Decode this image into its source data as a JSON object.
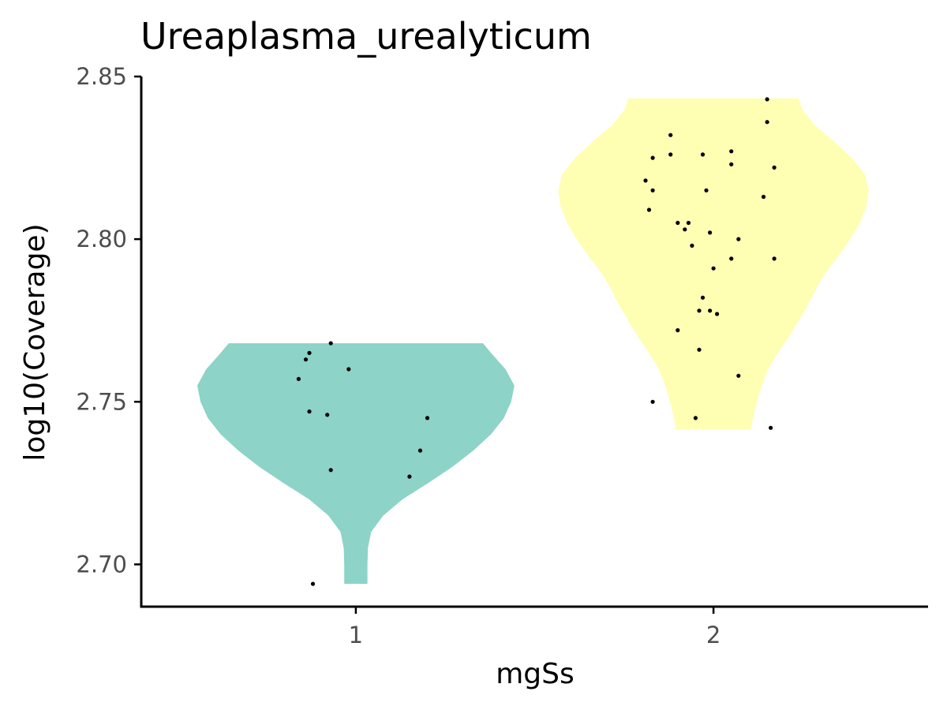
{
  "chart_data": {
    "type": "violin",
    "title": "Ureaplasma_urealyticum",
    "xlabel": "mgSs",
    "ylabel": "log10(Coverage)",
    "categories": [
      "1",
      "2"
    ],
    "y_ticks": [
      "2.70",
      "2.75",
      "2.80",
      "2.85"
    ],
    "y_tick_values": [
      2.7,
      2.75,
      2.8,
      2.85
    ],
    "ylim": [
      2.687,
      2.85
    ],
    "xlim": [
      0.4,
      2.6
    ],
    "grid": false,
    "legend": "none",
    "groups": [
      {
        "category": "1",
        "color": "#8dd3c7",
        "density_profile": [
          [
            2.694,
            0.072
          ],
          [
            2.7,
            0.072
          ],
          [
            2.705,
            0.075
          ],
          [
            2.71,
            0.095
          ],
          [
            2.715,
            0.17
          ],
          [
            2.72,
            0.29
          ],
          [
            2.725,
            0.45
          ],
          [
            2.73,
            0.6
          ],
          [
            2.735,
            0.73
          ],
          [
            2.74,
            0.84
          ],
          [
            2.745,
            0.92
          ],
          [
            2.75,
            0.965
          ],
          [
            2.755,
            0.985
          ],
          [
            2.76,
            0.93
          ],
          [
            2.765,
            0.84
          ],
          [
            2.768,
            0.79
          ]
        ],
        "points": [
          {
            "x": 0.88,
            "y": 2.694
          },
          {
            "x": 0.93,
            "y": 2.729
          },
          {
            "x": 1.15,
            "y": 2.727
          },
          {
            "x": 1.18,
            "y": 2.735
          },
          {
            "x": 1.2,
            "y": 2.745
          },
          {
            "x": 0.87,
            "y": 2.747
          },
          {
            "x": 0.92,
            "y": 2.746
          },
          {
            "x": 0.84,
            "y": 2.757
          },
          {
            "x": 0.98,
            "y": 2.76
          },
          {
            "x": 0.86,
            "y": 2.763
          },
          {
            "x": 0.87,
            "y": 2.765
          },
          {
            "x": 0.93,
            "y": 2.768
          }
        ]
      },
      {
        "category": "2",
        "color": "#ffffb3",
        "density_profile": [
          [
            2.7415,
            0.235
          ],
          [
            2.745,
            0.245
          ],
          [
            2.75,
            0.27
          ],
          [
            2.755,
            0.3
          ],
          [
            2.76,
            0.34
          ],
          [
            2.765,
            0.4
          ],
          [
            2.77,
            0.47
          ],
          [
            2.775,
            0.53
          ],
          [
            2.78,
            0.59
          ],
          [
            2.785,
            0.64
          ],
          [
            2.79,
            0.7
          ],
          [
            2.795,
            0.78
          ],
          [
            2.8,
            0.85
          ],
          [
            2.805,
            0.91
          ],
          [
            2.81,
            0.95
          ],
          [
            2.815,
            0.965
          ],
          [
            2.82,
            0.94
          ],
          [
            2.825,
            0.86
          ],
          [
            2.83,
            0.75
          ],
          [
            2.835,
            0.63
          ],
          [
            2.84,
            0.55
          ],
          [
            2.8433,
            0.53
          ]
        ],
        "points": [
          {
            "x": 2.15,
            "y": 2.843
          },
          {
            "x": 2.15,
            "y": 2.836
          },
          {
            "x": 1.88,
            "y": 2.832
          },
          {
            "x": 2.05,
            "y": 2.827
          },
          {
            "x": 1.88,
            "y": 2.826
          },
          {
            "x": 1.97,
            "y": 2.826
          },
          {
            "x": 1.83,
            "y": 2.825
          },
          {
            "x": 2.05,
            "y": 2.823
          },
          {
            "x": 2.17,
            "y": 2.822
          },
          {
            "x": 1.81,
            "y": 2.818
          },
          {
            "x": 1.83,
            "y": 2.815
          },
          {
            "x": 1.98,
            "y": 2.815
          },
          {
            "x": 2.14,
            "y": 2.813
          },
          {
            "x": 1.82,
            "y": 2.809
          },
          {
            "x": 1.9,
            "y": 2.805
          },
          {
            "x": 1.93,
            "y": 2.805
          },
          {
            "x": 1.92,
            "y": 2.803
          },
          {
            "x": 1.99,
            "y": 2.802
          },
          {
            "x": 2.07,
            "y": 2.8
          },
          {
            "x": 1.94,
            "y": 2.798
          },
          {
            "x": 2.05,
            "y": 2.794
          },
          {
            "x": 2.17,
            "y": 2.794
          },
          {
            "x": 2.0,
            "y": 2.791
          },
          {
            "x": 1.97,
            "y": 2.782
          },
          {
            "x": 1.96,
            "y": 2.778
          },
          {
            "x": 1.99,
            "y": 2.778
          },
          {
            "x": 2.01,
            "y": 2.777
          },
          {
            "x": 1.9,
            "y": 2.772
          },
          {
            "x": 1.96,
            "y": 2.766
          },
          {
            "x": 2.07,
            "y": 2.758
          },
          {
            "x": 1.83,
            "y": 2.75
          },
          {
            "x": 1.95,
            "y": 2.745
          },
          {
            "x": 2.16,
            "y": 2.742
          }
        ]
      }
    ]
  }
}
